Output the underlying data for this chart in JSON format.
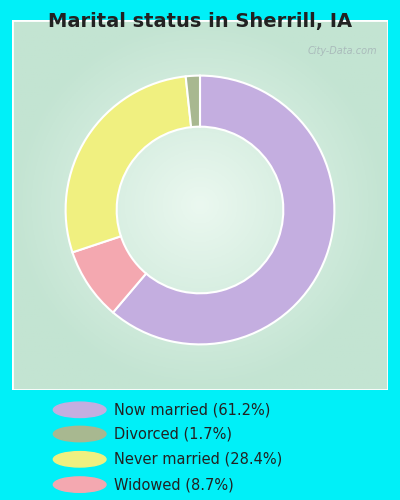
{
  "title": "Marital status in Sherrill, IA",
  "plot_sizes": [
    61.2,
    8.7,
    28.4,
    1.7
  ],
  "plot_colors": [
    "#c4aee0",
    "#f4a8b0",
    "#f0f080",
    "#a8b890"
  ],
  "labels": [
    "Now married (61.2%)",
    "Divorced (1.7%)",
    "Never married (28.4%)",
    "Widowed (8.7%)"
  ],
  "legend_colors": [
    "#c4aee0",
    "#a8b890",
    "#f0f080",
    "#f4a8b0"
  ],
  "outer_bg": "#00f0f8",
  "title_fontsize": 14,
  "legend_fontsize": 10.5,
  "watermark": "City-Data.com",
  "donut_width": 0.38,
  "startangle": 90,
  "chart_border_color": "#ffffff"
}
